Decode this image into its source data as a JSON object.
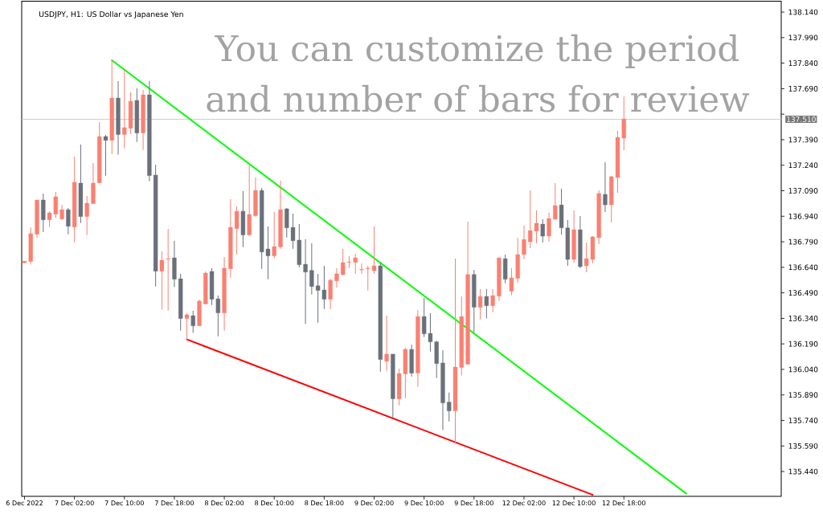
{
  "chart_data": {
    "type": "candlestick",
    "title": "USDJPY, H1:  US Dollar vs Japanese Yen",
    "annotations": [
      "You can customize the period",
      "and number of bars for review"
    ],
    "categories": [
      "6 Dec 2022",
      null,
      null,
      null,
      null,
      null,
      null,
      null,
      "7 Dec 02:00",
      null,
      null,
      null,
      null,
      null,
      null,
      null,
      "7 Dec 10:00",
      null,
      null,
      null,
      null,
      null,
      null,
      null,
      "7 Dec 18:00",
      null,
      null,
      null,
      null,
      null,
      null,
      null,
      "8 Dec 02:00",
      null,
      null,
      null,
      null,
      null,
      null,
      null,
      "8 Dec 10:00",
      null,
      null,
      null,
      null,
      null,
      null,
      null,
      "8 Dec 18:00",
      null,
      null,
      null,
      null,
      null,
      null,
      null,
      "9 Dec 02:00",
      null,
      null,
      null,
      null,
      null,
      null,
      null,
      "9 Dec 10:00",
      null,
      null,
      null,
      null,
      null,
      null,
      null,
      "9 Dec 18:00",
      null,
      null,
      null,
      null,
      null,
      null,
      null,
      "12 Dec 02:00",
      null,
      null,
      null,
      null,
      null,
      null,
      null,
      "12 Dec 10:00",
      null,
      null,
      null,
      null,
      null,
      null,
      null,
      "12 Dec 18:00",
      null,
      null,
      null,
      null,
      null,
      null,
      null,
      null,
      null,
      null,
      null,
      null,
      null,
      null,
      null,
      null,
      null,
      null,
      null,
      null,
      null,
      null,
      null,
      null,
      null
    ],
    "ohlc": [
      [
        136.666,
        136.676,
        136.666,
        136.676
      ],
      [
        136.674,
        136.874,
        136.657,
        136.838
      ],
      [
        136.834,
        137.036,
        136.811,
        137.036
      ],
      [
        137.036,
        137.074,
        136.847,
        136.919
      ],
      [
        136.919,
        136.97,
        136.877,
        136.96
      ],
      [
        136.952,
        137.083,
        136.929,
        137.055
      ],
      [
        136.924,
        137.007,
        136.919,
        136.979
      ],
      [
        136.979,
        136.989,
        136.834,
        136.881
      ],
      [
        136.877,
        137.291,
        136.787,
        137.14
      ],
      [
        137.135,
        137.361,
        136.9,
        136.938
      ],
      [
        136.938,
        137.059,
        136.83,
        137.017
      ],
      [
        137.014,
        137.253,
        137.014,
        137.135
      ],
      [
        137.136,
        137.494,
        137.136,
        137.409
      ],
      [
        137.409,
        137.418,
        137.179,
        137.386
      ],
      [
        137.386,
        137.857,
        137.306,
        137.635
      ],
      [
        137.635,
        137.734,
        137.302,
        137.42
      ],
      [
        137.42,
        137.799,
        137.339,
        137.461
      ],
      [
        137.457,
        137.668,
        137.424,
        137.616
      ],
      [
        137.621,
        137.692,
        137.377,
        137.429
      ],
      [
        137.429,
        137.682,
        137.33,
        137.654
      ],
      [
        137.654,
        137.734,
        137.146,
        137.179
      ],
      [
        137.182,
        137.243,
        136.527,
        136.617
      ],
      [
        136.617,
        136.734,
        136.391,
        136.682
      ],
      [
        136.688,
        136.866,
        136.386,
        136.691
      ],
      [
        136.696,
        136.796,
        136.523,
        136.57
      ],
      [
        136.573,
        136.602,
        136.268,
        136.339
      ],
      [
        136.339,
        136.37,
        136.216,
        136.361
      ],
      [
        136.356,
        136.384,
        136.254,
        136.296
      ],
      [
        136.296,
        136.45,
        136.296,
        136.441
      ],
      [
        136.424,
        136.616,
        136.424,
        136.606
      ],
      [
        136.616,
        136.635,
        136.419,
        136.452
      ],
      [
        136.455,
        136.474,
        136.235,
        136.372
      ],
      [
        136.372,
        136.701,
        136.268,
        136.635
      ],
      [
        136.631,
        137.04,
        136.579,
        136.875
      ],
      [
        136.867,
        136.998,
        136.716,
        136.97
      ],
      [
        136.97,
        137.088,
        136.759,
        136.83
      ],
      [
        136.83,
        137.239,
        136.825,
        136.951
      ],
      [
        136.943,
        137.168,
        136.938,
        137.092
      ],
      [
        137.092,
        137.106,
        136.631,
        136.73
      ],
      [
        136.748,
        136.88,
        136.57,
        136.707
      ],
      [
        136.707,
        136.965,
        136.693,
        136.762
      ],
      [
        136.759,
        137.149,
        136.749,
        136.979
      ],
      [
        136.984,
        136.989,
        136.815,
        136.872
      ],
      [
        136.875,
        136.956,
        136.749,
        136.796
      ],
      [
        136.8,
        136.894,
        136.641,
        136.655
      ],
      [
        136.658,
        136.806,
        136.306,
        136.612
      ],
      [
        136.622,
        136.781,
        136.48,
        136.527
      ],
      [
        136.532,
        136.602,
        136.315,
        136.504
      ],
      [
        136.507,
        136.649,
        136.395,
        136.452
      ],
      [
        136.452,
        136.573,
        136.394,
        136.564
      ],
      [
        136.56,
        136.635,
        136.521,
        136.602
      ],
      [
        136.597,
        136.748,
        136.592,
        136.668
      ],
      [
        136.669,
        136.705,
        136.635,
        136.672
      ],
      [
        136.669,
        136.72,
        136.602,
        136.696
      ],
      [
        136.624,
        136.663,
        136.602,
        136.628
      ],
      [
        136.631,
        136.649,
        136.504,
        136.635
      ],
      [
        136.62,
        136.88,
        136.602,
        136.649
      ],
      [
        136.649,
        136.668,
        136.027,
        136.098
      ],
      [
        136.088,
        136.356,
        136.032,
        136.13
      ],
      [
        136.13,
        136.13,
        135.758,
        135.867
      ],
      [
        135.867,
        136.045,
        135.829,
        136.016
      ],
      [
        136.013,
        136.167,
        135.871,
        136.158
      ],
      [
        136.158,
        136.186,
        135.999,
        136.018
      ],
      [
        136.018,
        136.389,
        135.937,
        136.351
      ],
      [
        136.351,
        136.46,
        136.23,
        136.249
      ],
      [
        136.252,
        136.37,
        136.145,
        136.202
      ],
      [
        136.202,
        136.208,
        135.989,
        136.074
      ],
      [
        136.078,
        136.153,
        135.683,
        135.843
      ],
      [
        135.848,
        135.904,
        135.734,
        135.796
      ],
      [
        135.796,
        136.691,
        135.607,
        136.054
      ],
      [
        136.051,
        136.469,
        136.004,
        136.351
      ],
      [
        136.07,
        136.908,
        136.07,
        136.598
      ],
      [
        136.598,
        136.625,
        136.258,
        136.405
      ],
      [
        136.405,
        136.512,
        136.334,
        136.469
      ],
      [
        136.469,
        136.512,
        136.339,
        136.414
      ],
      [
        136.414,
        136.512,
        136.376,
        136.474
      ],
      [
        136.471,
        136.696,
        136.442,
        136.696
      ],
      [
        136.691,
        136.715,
        136.546,
        136.57
      ],
      [
        136.499,
        136.635,
        136.476,
        136.578
      ],
      [
        136.575,
        136.814,
        136.551,
        136.715
      ],
      [
        136.715,
        136.885,
        136.688,
        136.804
      ],
      [
        136.79,
        137.092,
        136.753,
        136.856
      ],
      [
        136.852,
        136.974,
        136.781,
        136.899
      ],
      [
        136.894,
        136.922,
        136.786,
        136.823
      ],
      [
        136.823,
        136.96,
        136.79,
        136.927
      ],
      [
        136.922,
        137.135,
        136.922,
        137.003
      ],
      [
        137.007,
        137.102,
        136.831,
        136.872
      ],
      [
        136.872,
        136.918,
        136.649,
        136.686
      ],
      [
        136.686,
        136.974,
        136.668,
        136.861
      ],
      [
        136.861,
        136.941,
        136.635,
        136.644
      ],
      [
        136.649,
        136.786,
        136.611,
        136.691
      ],
      [
        136.686,
        136.823,
        136.663,
        136.819
      ],
      [
        136.814,
        137.092,
        136.776,
        137.074
      ],
      [
        137.069,
        137.258,
        136.965,
        137.007
      ],
      [
        137.007,
        137.177,
        136.904,
        137.173
      ],
      [
        137.168,
        137.442,
        137.078,
        137.404
      ],
      [
        137.399,
        137.645,
        137.328,
        137.512
      ],
      null,
      null,
      null,
      null,
      null,
      null,
      null,
      null,
      null,
      null,
      null,
      null,
      null,
      null,
      null,
      null,
      null,
      null,
      null,
      null,
      null,
      null,
      null,
      null,
      null
    ],
    "colors": [
      "#fa8072",
      "#fa8072",
      "#fa8072",
      "#6b717b",
      "#fa8072",
      "#fa8072",
      "#fa8072",
      "#6b717b",
      "#fa8072",
      "#6b717b",
      "#fa8072",
      "#fa8072",
      "#fa8072",
      "#6b717b",
      "#fa8072",
      "#6b717b",
      "#fa8072",
      "#fa8072",
      "#6b717b",
      "#fa8072",
      "#6b717b",
      "#6b717b",
      "#fa8072",
      "#fa8072",
      "#6b717b",
      "#6b717b",
      "#fa8072",
      "#6b717b",
      "#fa8072",
      "#fa8072",
      "#6b717b",
      "#6b717b",
      "#fa8072",
      "#fa8072",
      "#fa8072",
      "#6b717b",
      "#fa8072",
      "#fa8072",
      "#6b717b",
      "#6b717b",
      "#fa8072",
      "#fa8072",
      "#6b717b",
      "#6b717b",
      "#6b717b",
      "#6b717b",
      "#6b717b",
      "#6b717b",
      "#6b717b",
      "#fa8072",
      "#fa8072",
      "#fa8072",
      "#fa8072",
      "#fa8072",
      "#fa8072",
      "#fa8072",
      "#fa8072",
      "#6b717b",
      "#fa8072",
      "#6b717b",
      "#fa8072",
      "#fa8072",
      "#6b717b",
      "#fa8072",
      "#6b717b",
      "#6b717b",
      "#6b717b",
      "#6b717b",
      "#6b717b",
      "#fa8072",
      "#fa8072",
      "#fa8072",
      "#6b717b",
      "#fa8072",
      "#6b717b",
      "#fa8072",
      "#fa8072",
      "#6b717b",
      "#fa8072",
      "#fa8072",
      "#fa8072",
      "#fa8072",
      "#fa8072",
      "#6b717b",
      "#fa8072",
      "#fa8072",
      "#6b717b",
      "#6b717b",
      "#fa8072",
      "#6b717b",
      "#fa8072",
      "#fa8072",
      "#fa8072",
      "#6b717b",
      "#fa8072",
      "#fa8072",
      "#fa8072",
      null,
      null,
      null,
      null,
      null,
      null,
      null,
      null,
      null,
      null,
      null,
      null,
      null,
      null,
      null,
      null,
      null,
      null,
      null,
      null,
      null,
      null,
      null,
      null,
      null
    ],
    "series": [
      {
        "type": "line",
        "color": "#00ff00",
        "values": [
          null,
          null,
          null,
          null,
          null,
          null,
          null,
          null,
          null,
          null,
          null,
          null,
          null,
          null,
          137.857,
          null,
          null,
          null,
          null,
          null,
          null,
          null,
          null,
          null,
          null,
          null,
          null,
          null,
          null,
          null,
          null,
          null,
          null,
          null,
          null,
          null,
          null,
          null,
          null,
          null,
          null,
          null,
          null,
          null,
          null,
          null,
          null,
          null,
          null,
          null,
          null,
          null,
          null,
          null,
          null,
          null,
          null,
          null,
          null,
          null,
          null,
          null,
          null,
          null,
          null,
          null,
          null,
          null,
          null,
          null,
          null,
          null,
          null,
          null,
          null,
          null,
          null,
          null,
          null,
          null,
          null,
          null,
          null,
          null,
          null,
          null,
          null,
          null,
          null,
          null,
          null,
          null,
          null,
          null,
          null,
          null,
          null,
          null,
          null,
          null,
          null,
          null,
          null,
          null,
          null,
          null,
          135.31,
          null,
          null,
          null,
          null,
          null,
          null,
          null,
          null,
          null,
          null,
          null,
          null,
          null,
          null,
          null
        ]
      },
      {
        "type": "line",
        "color": "#ff0000",
        "values": [
          null,
          null,
          null,
          null,
          null,
          null,
          null,
          null,
          null,
          null,
          null,
          null,
          null,
          null,
          null,
          null,
          null,
          null,
          null,
          null,
          null,
          null,
          null,
          null,
          null,
          null,
          136.216,
          null,
          null,
          null,
          null,
          null,
          null,
          null,
          null,
          null,
          null,
          null,
          null,
          null,
          null,
          null,
          null,
          null,
          null,
          null,
          null,
          null,
          null,
          null,
          null,
          null,
          null,
          null,
          null,
          null,
          null,
          null,
          null,
          null,
          null,
          null,
          null,
          null,
          null,
          null,
          null,
          null,
          null,
          null,
          null,
          null,
          null,
          null,
          null,
          null,
          null,
          null,
          null,
          null,
          null,
          null,
          null,
          null,
          null,
          null,
          null,
          null,
          null,
          null,
          null,
          135.303,
          null,
          null,
          null,
          null,
          null,
          null,
          null,
          null,
          null,
          null,
          null,
          null,
          null,
          null,
          null,
          null,
          null,
          null,
          null,
          null,
          null,
          null,
          null,
          null,
          null,
          null,
          null,
          null,
          null,
          null
        ]
      }
    ],
    "ref_lines": [
      {
        "axis": "y",
        "value": 137.51,
        "label": "137.510",
        "color": "#c0c0c0"
      }
    ],
    "ylim": [
      135.294,
      138.204
    ],
    "yticks": [
      {
        "value": 138.14,
        "label": "138.140"
      },
      {
        "value": 137.99,
        "label": "137.990"
      },
      {
        "value": 137.84,
        "label": "137.840"
      },
      {
        "value": 137.69,
        "label": "137.690"
      },
      {
        "value": 137.54,
        "label": null
      },
      {
        "value": 137.39,
        "label": "137.390"
      },
      {
        "value": 137.24,
        "label": "137.240"
      },
      {
        "value": 137.09,
        "label": "137.090"
      },
      {
        "value": 136.94,
        "label": "136.940"
      },
      {
        "value": 136.79,
        "label": "136.790"
      },
      {
        "value": 136.64,
        "label": "136.640"
      },
      {
        "value": 136.49,
        "label": "136.490"
      },
      {
        "value": 136.34,
        "label": "136.340"
      },
      {
        "value": 136.19,
        "label": "136.190"
      },
      {
        "value": 136.04,
        "label": "136.040"
      },
      {
        "value": 135.89,
        "label": "135.890"
      },
      {
        "value": 135.74,
        "label": "135.740"
      },
      {
        "value": 135.59,
        "label": "135.590"
      },
      {
        "value": 135.44,
        "label": "135.440"
      }
    ]
  }
}
